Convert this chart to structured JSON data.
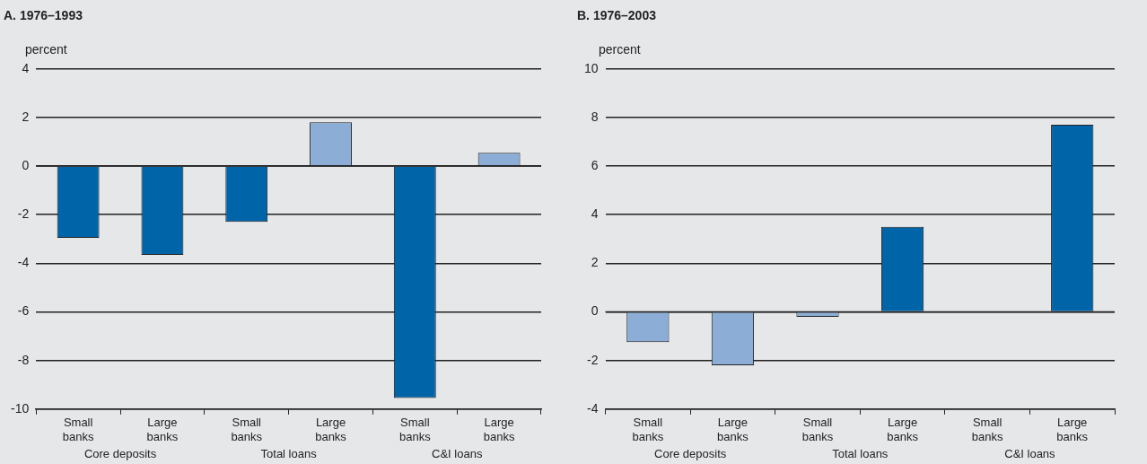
{
  "chart_data": [
    {
      "type": "bar",
      "title": "A. 1976–1993",
      "ylabel": "percent",
      "categories": [
        "Small banks",
        "Large banks",
        "Small banks",
        "Large banks",
        "Small banks",
        "Large banks"
      ],
      "values": [
        -2.95,
        -3.65,
        -2.3,
        1.8,
        -9.55,
        0.55
      ],
      "colors": [
        "#0064a8",
        "#0064a8",
        "#0064a8",
        "#8caed6",
        "#0064a8",
        "#8caed6"
      ],
      "ylim": [
        -10,
        4
      ],
      "yticks": [
        -10,
        -8,
        -6,
        -4,
        -2,
        0,
        2,
        4
      ],
      "grid": "y",
      "annotations": [
        "Core deposits",
        "Total loans",
        "C&I loans"
      ]
    },
    {
      "type": "bar",
      "title": "B. 1976–2003",
      "ylabel": "percent",
      "categories": [
        "Small banks",
        "Large banks",
        "Small banks",
        "Large banks",
        "Small banks",
        "Large banks"
      ],
      "values": [
        -1.25,
        -2.2,
        -0.2,
        3.5,
        null,
        7.7
      ],
      "colors": [
        "#8caed6",
        "#8caed6",
        "#8caed6",
        "#0064a8",
        "#0064a8",
        "#0064a8"
      ],
      "ylim": [
        -4,
        10
      ],
      "yticks": [
        -4,
        -2,
        0,
        2,
        4,
        6,
        8,
        10
      ],
      "grid": "y",
      "annotations": [
        "Core deposits",
        "Total loans",
        "C&I loans"
      ]
    }
  ]
}
